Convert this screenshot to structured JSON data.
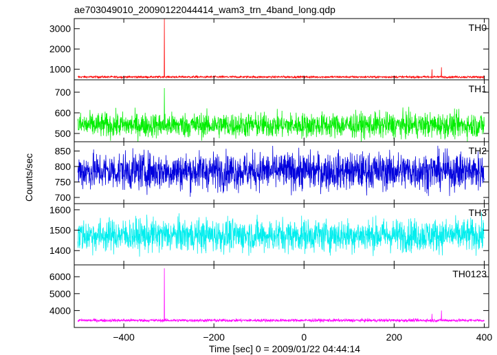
{
  "chart_data": {
    "type": "line",
    "title": "ae703049010_20090122044414_wam3_trn_4band_long.qdp",
    "xlabel": "Time [sec] 0 = 2009/01/22 04:44:14",
    "ylabel": "Counts/sec",
    "xlim": [
      -510,
      410
    ],
    "xticks": [
      -400,
      -200,
      0,
      200,
      400
    ],
    "xtick_labels": [
      "−400",
      "−200",
      "0",
      "200",
      "400"
    ],
    "grid": false,
    "panels": [
      {
        "name": "TH0",
        "color": "#ff0000",
        "ylim": [
          480,
          3500
        ],
        "yticks": [
          1000,
          2000,
          3000
        ],
        "ytick_labels": [
          "1000",
          "2000",
          "3000"
        ],
        "baseline": 620,
        "noise_amplitude": 25,
        "spikes": [
          {
            "x": -310,
            "y": 3500
          },
          {
            "x": 284,
            "y": 1000
          },
          {
            "x": 305,
            "y": 1100
          }
        ]
      },
      {
        "name": "TH1",
        "color": "#00ee00",
        "ylim": [
          460,
          760
        ],
        "yticks": [
          500,
          600,
          700
        ],
        "ytick_labels": [
          "500",
          "600",
          "700"
        ],
        "baseline": 540,
        "noise_amplitude": 30,
        "spikes": [
          {
            "x": -310,
            "y": 720
          }
        ]
      },
      {
        "name": "TH2",
        "color": "#0000dd",
        "ylim": [
          680,
          880
        ],
        "yticks": [
          700,
          750,
          800,
          850
        ],
        "ytick_labels": [
          "700",
          "750",
          "800",
          "850"
        ],
        "baseline": 785,
        "noise_amplitude": 30,
        "spikes": []
      },
      {
        "name": "TH3",
        "color": "#00eeee",
        "ylim": [
          1330,
          1630
        ],
        "yticks": [
          1400,
          1500,
          1600
        ],
        "ytick_labels": [
          "1400",
          "1500",
          "1600"
        ],
        "baseline": 1475,
        "noise_amplitude": 40,
        "spikes": []
      },
      {
        "name": "TH0123",
        "color": "#ff00ff",
        "ylim": [
          3000,
          6700
        ],
        "yticks": [
          4000,
          5000,
          6000
        ],
        "ytick_labels": [
          "4000",
          "5000",
          "6000"
        ],
        "baseline": 3420,
        "noise_amplitude": 45,
        "spikes": [
          {
            "x": -310,
            "y": 6500
          },
          {
            "x": 284,
            "y": 3800
          },
          {
            "x": 305,
            "y": 4000
          }
        ]
      }
    ]
  }
}
